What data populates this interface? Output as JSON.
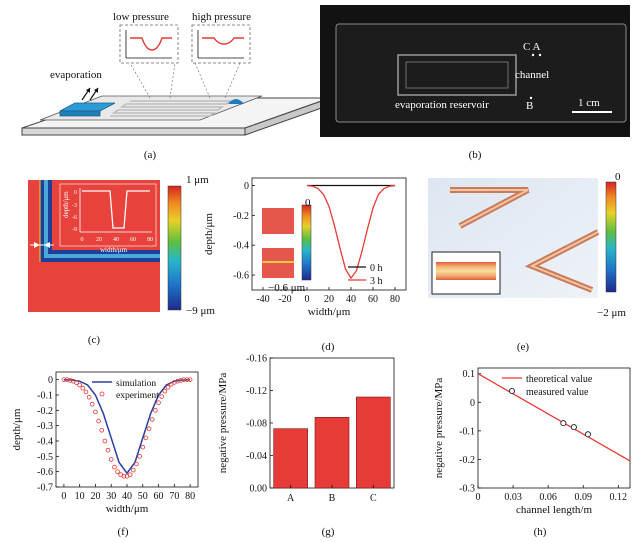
{
  "panels": {
    "a": {
      "label": "(a)",
      "text_evaporation": "evaporation",
      "text_low": "low pressure",
      "text_high": "high pressure"
    },
    "b": {
      "label": "(b)",
      "text_ca": "C A",
      "text_channel": "channel",
      "text_b": "B",
      "text_reservoir": "evaporation reservoir",
      "text_scale": "1 cm"
    },
    "c": {
      "label": "(c)",
      "colorbar_max": "1 μm",
      "colorbar_min": "−9 μm",
      "inset_ylabel": "depth/μm",
      "inset_xlabel": "width/μm",
      "inset_yticks": [
        "0",
        "-3",
        "-6",
        "-9"
      ],
      "inset_xticks": [
        "0",
        "20",
        "40",
        "60",
        "80"
      ]
    },
    "d": {
      "label": "(d)",
      "colorbar_max": "0",
      "colorbar_min": "−0.6 μm"
    },
    "e": {
      "label": "(e)",
      "colorbar_max": "0",
      "colorbar_min": "−2 μm"
    },
    "f": {
      "label": "(f)"
    },
    "g": {
      "label": "(g)"
    },
    "h": {
      "label": "(h)"
    }
  },
  "colors": {
    "red": "#e63b36",
    "blue": "#2c3e9e",
    "black": "#111111"
  },
  "chart_data": [
    {
      "id": "d",
      "type": "line",
      "xlabel": "width/μm",
      "ylabel": "depth/μm",
      "xlim": [
        -50,
        90
      ],
      "ylim": [
        -0.7,
        0.05
      ],
      "xticks": [
        -40,
        -20,
        0,
        20,
        40,
        60,
        80
      ],
      "yticks": [
        0,
        -0.2,
        -0.4,
        -0.6
      ],
      "legend": "bottom-right",
      "series": [
        {
          "name": "0 h",
          "color": "#111111",
          "x": [
            0,
            10,
            20,
            30,
            40,
            50,
            60,
            70,
            80
          ],
          "y": [
            0,
            0,
            0,
            0,
            0,
            0,
            0,
            0,
            0
          ]
        },
        {
          "name": "3 h",
          "color": "#e63b36",
          "x": [
            0,
            5,
            10,
            15,
            20,
            25,
            30,
            35,
            40,
            45,
            50,
            55,
            60,
            65,
            70,
            75,
            80
          ],
          "y": [
            0,
            -0.005,
            -0.02,
            -0.06,
            -0.14,
            -0.27,
            -0.42,
            -0.56,
            -0.62,
            -0.57,
            -0.44,
            -0.29,
            -0.15,
            -0.06,
            -0.02,
            -0.005,
            0
          ]
        }
      ]
    },
    {
      "id": "f",
      "type": "line",
      "xlabel": "width/μm",
      "ylabel": "depth/μm",
      "xlim": [
        -5,
        85
      ],
      "ylim": [
        -0.7,
        0.05
      ],
      "xticks": [
        0,
        10,
        20,
        30,
        40,
        50,
        60,
        70,
        80
      ],
      "yticks": [
        0,
        -0.1,
        -0.2,
        -0.3,
        -0.4,
        -0.5,
        -0.6,
        -0.7
      ],
      "legend": "top-center",
      "series": [
        {
          "name": "simulation",
          "style": "line",
          "color": "#2c3e9e",
          "x": [
            0,
            5,
            10,
            15,
            20,
            25,
            30,
            35,
            40,
            45,
            50,
            55,
            60,
            65,
            70,
            75,
            80
          ],
          "y": [
            0,
            -0.002,
            -0.01,
            -0.035,
            -0.1,
            -0.22,
            -0.38,
            -0.54,
            -0.61,
            -0.54,
            -0.38,
            -0.22,
            -0.1,
            -0.035,
            -0.01,
            -0.002,
            0
          ]
        },
        {
          "name": "experiment",
          "style": "marker",
          "color": "#e63b36",
          "x": [
            0,
            2,
            4,
            6,
            8,
            10,
            12,
            14,
            16,
            18,
            20,
            22,
            24,
            26,
            28,
            30,
            32,
            34,
            36,
            38,
            40,
            42,
            44,
            46,
            48,
            50,
            52,
            54,
            56,
            58,
            60,
            62,
            64,
            66,
            68,
            70,
            72,
            74,
            76,
            78,
            80
          ],
          "y": [
            0,
            0,
            -0.005,
            -0.01,
            -0.02,
            -0.035,
            -0.055,
            -0.08,
            -0.115,
            -0.16,
            -0.21,
            -0.27,
            -0.33,
            -0.4,
            -0.46,
            -0.52,
            -0.57,
            -0.6,
            -0.62,
            -0.63,
            -0.63,
            -0.62,
            -0.59,
            -0.55,
            -0.5,
            -0.44,
            -0.38,
            -0.32,
            -0.26,
            -0.2,
            -0.15,
            -0.11,
            -0.075,
            -0.05,
            -0.03,
            -0.018,
            -0.01,
            -0.005,
            0,
            0,
            0
          ]
        }
      ]
    },
    {
      "id": "g",
      "type": "bar",
      "ylabel": "negative pressure/MPa",
      "categories": [
        "A",
        "B",
        "C"
      ],
      "values": [
        -0.073,
        -0.087,
        -0.112
      ],
      "ylim": [
        0,
        -0.16
      ],
      "yticks": [
        0,
        -0.04,
        -0.08,
        -0.12,
        -0.16
      ],
      "ytick_labels": [
        "0.00",
        "-0.04",
        "-0.08",
        "-0.12",
        "-0.16"
      ],
      "color": "#e63b36"
    },
    {
      "id": "h",
      "type": "scatter",
      "xlabel": "channel length/m",
      "ylabel": "negative pressure/MPa",
      "xlim": [
        0,
        0.13
      ],
      "ylim": [
        -0.3,
        0.12
      ],
      "xticks": [
        0,
        0.03,
        0.06,
        0.09,
        0.12
      ],
      "xtick_labels": [
        "0",
        "0.03",
        "0.06",
        "0.09",
        "0.12"
      ],
      "yticks": [
        0.1,
        0,
        -0.1,
        -0.2,
        -0.3
      ],
      "ytick_labels": [
        "0.1",
        "0",
        "-0.1",
        "-0.2",
        "-0.3"
      ],
      "legend": "top-right",
      "series": [
        {
          "name": "theoretical value",
          "style": "line",
          "color": "#e63b36",
          "x": [
            0,
            0.13
          ],
          "y": [
            0.1,
            -0.205
          ]
        },
        {
          "name": "measured value",
          "style": "marker",
          "color": "#111111",
          "x": [
            0.073,
            0.082,
            0.094
          ],
          "y": [
            -0.073,
            -0.087,
            -0.112
          ]
        }
      ]
    }
  ]
}
